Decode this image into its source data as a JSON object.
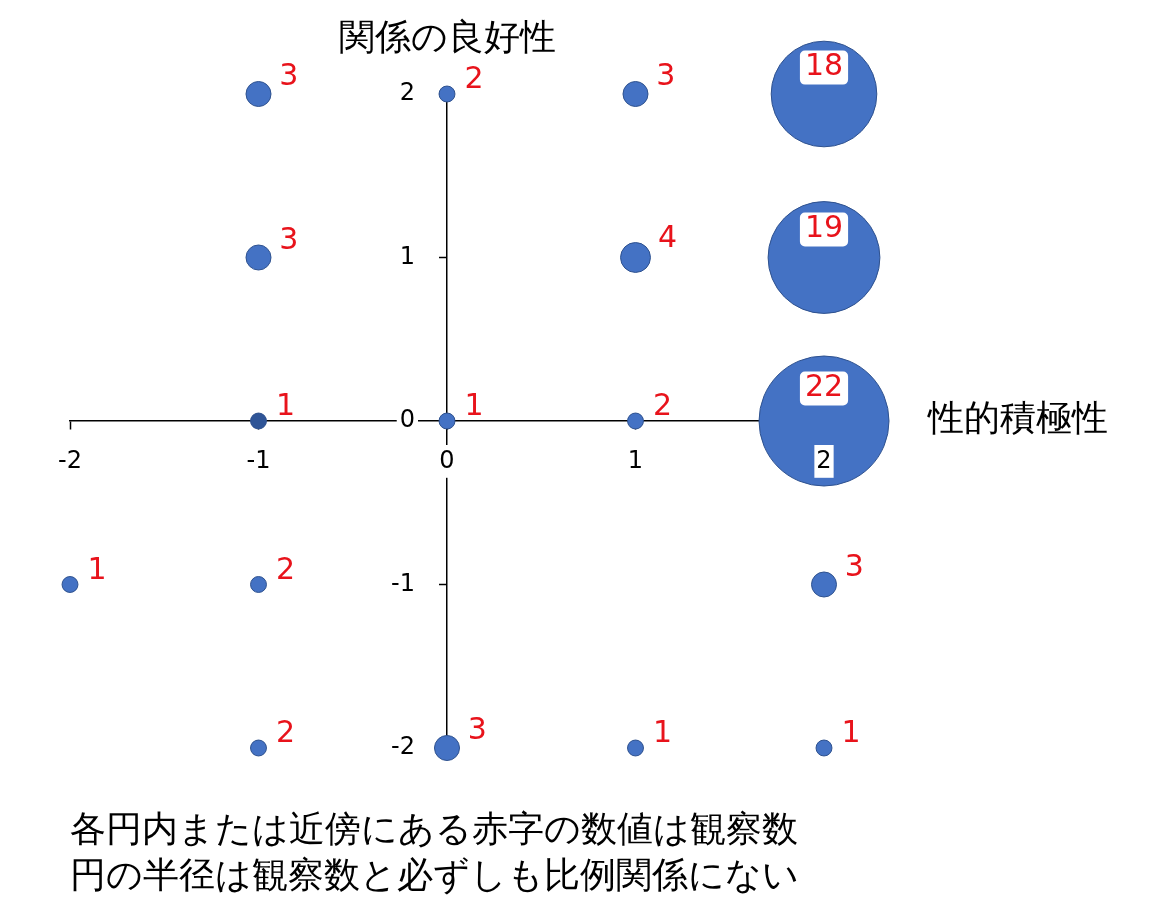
{
  "chart_data": {
    "type": "bubble",
    "xlabel": "性的積極性",
    "ylabel": "関係の良好性",
    "x": [
      -1,
      0,
      1,
      2,
      -1,
      1,
      2,
      -1,
      0,
      1,
      2,
      -2,
      -1,
      2,
      -1,
      0,
      1,
      2
    ],
    "values": [
      2,
      2,
      2,
      2,
      1,
      1,
      1,
      0,
      0,
      0,
      0,
      -1,
      -1,
      -1,
      -2,
      -2,
      -2,
      -2
    ],
    "sizes": [
      0.037,
      0.015,
      0.037,
      0.66,
      0.037,
      0.053,
      0.74,
      0.015,
      0.015,
      0.015,
      1,
      0.015,
      0.015,
      0.037,
      0.015,
      0.037,
      0.015,
      0.015
    ],
    "colors": [
      "#4472c4",
      "#4472c4",
      "#4472c4",
      "#4472c4",
      "#4472c4",
      "#4472c4",
      "#4472c4",
      "#2f5597",
      "#4472c4",
      "#4472c4",
      "#4472c4",
      "#4472c4",
      "#4472c4",
      "#4472c4",
      "#4472c4",
      "#4472c4",
      "#4472c4",
      "#4472c4"
    ],
    "xlim": [
      -2,
      2
    ],
    "ylim": [
      -2,
      2
    ],
    "xticks": [
      -2,
      -1,
      0,
      1,
      2
    ],
    "yticks": [
      -2,
      -1,
      0,
      1,
      2
    ],
    "annotations": [
      {
        "text": "3",
        "x": -1,
        "y": 2
      },
      {
        "text": "2",
        "x": 0,
        "y": 2
      },
      {
        "text": "3",
        "x": 1,
        "y": 2
      },
      {
        "text": "18",
        "x": 2,
        "y": 2
      },
      {
        "text": "3",
        "x": -1,
        "y": 1
      },
      {
        "text": "4",
        "x": 1,
        "y": 1
      },
      {
        "text": "19",
        "x": 2,
        "y": 1
      },
      {
        "text": "1",
        "x": -1,
        "y": 0
      },
      {
        "text": "1",
        "x": 0,
        "y": 0
      },
      {
        "text": "2",
        "x": 1,
        "y": 0
      },
      {
        "text": "22",
        "x": 2,
        "y": 0
      },
      {
        "text": "1",
        "x": -2,
        "y": -1
      },
      {
        "text": "2",
        "x": -1,
        "y": -1
      },
      {
        "text": "3",
        "x": 2,
        "y": -1
      },
      {
        "text": "2",
        "x": -1,
        "y": -2
      },
      {
        "text": "3",
        "x": 0,
        "y": -2
      },
      {
        "text": "1",
        "x": 1,
        "y": -2
      },
      {
        "text": "1",
        "x": 2,
        "y": -2
      },
      "各円内または近傍にある赤字の数値は観察数",
      "円の半径は観察数と必ずしも比例関係にない"
    ]
  }
}
